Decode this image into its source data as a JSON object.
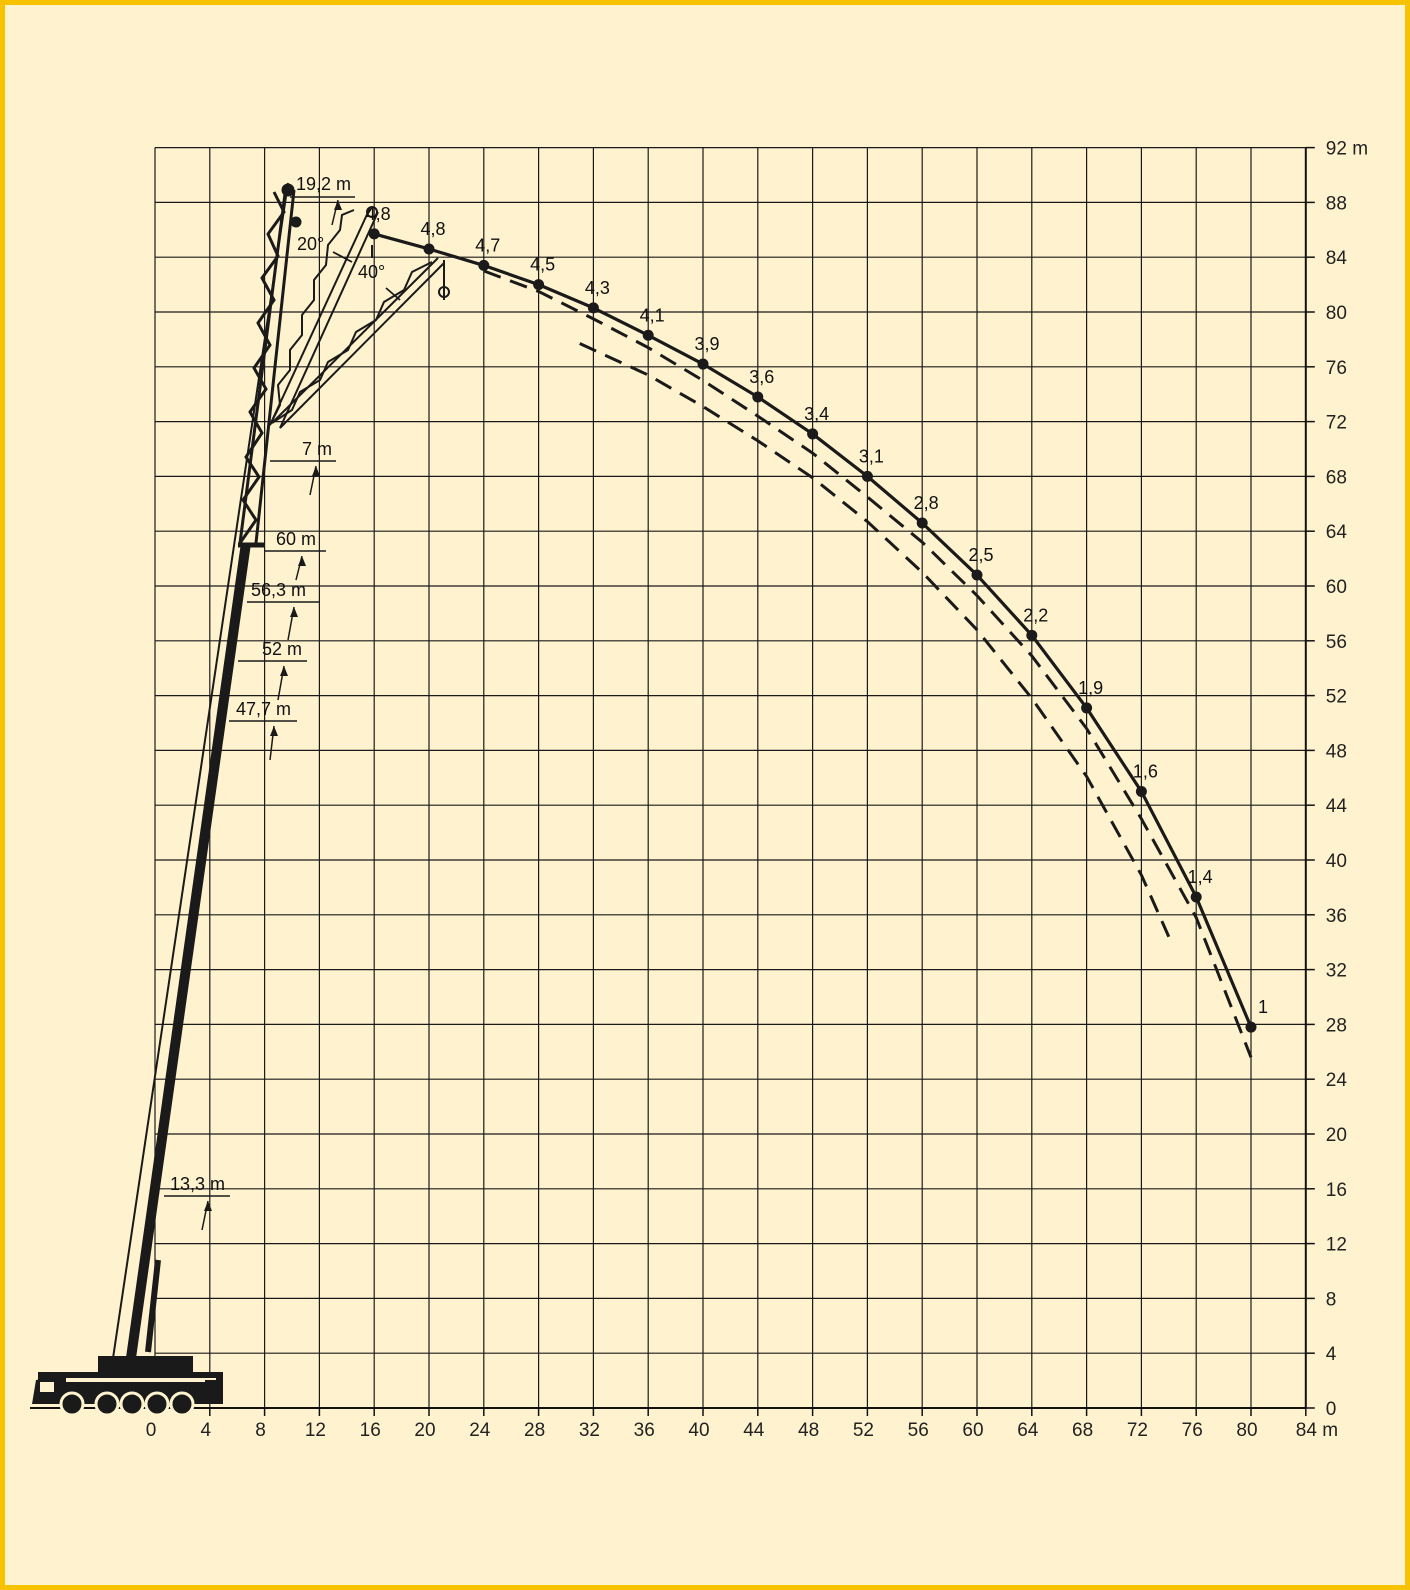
{
  "chart_data": {
    "type": "line",
    "title": "",
    "xlabel": "m",
    "ylabel": "m",
    "xlim": [
      0,
      84
    ],
    "ylim": [
      0,
      92
    ],
    "grid": true,
    "x_ticks": [
      "0",
      "4",
      "8",
      "12",
      "16",
      "20",
      "24",
      "28",
      "32",
      "36",
      "40",
      "44",
      "48",
      "52",
      "56",
      "60",
      "64",
      "68",
      "72",
      "76",
      "80",
      "84 m"
    ],
    "y_ticks": [
      "0",
      "4",
      "8",
      "12",
      "16",
      "20",
      "24",
      "28",
      "32",
      "36",
      "40",
      "44",
      "48",
      "52",
      "56",
      "60",
      "64",
      "68",
      "72",
      "76",
      "80",
      "84",
      "88",
      "92 m"
    ],
    "series": [
      {
        "style": "solid",
        "x": [
          16,
          20,
          24,
          28,
          32,
          36,
          40,
          44,
          48,
          52,
          56,
          60,
          64,
          68,
          72,
          76,
          80
        ],
        "y": [
          85.7,
          84.6,
          83.4,
          82.0,
          80.3,
          78.3,
          76.2,
          73.8,
          71.1,
          68.0,
          64.6,
          60.8,
          56.4,
          51.1,
          45.0,
          37.3,
          27.8
        ],
        "point_labels": [
          "4,8",
          "4,8",
          "4,7",
          "4,5",
          "4,3",
          "4,1",
          "3,9",
          "3,6",
          "3,4",
          "3,1",
          "2,8",
          "2,5",
          "2,2",
          "1,9",
          "1,6",
          "1,4",
          "1"
        ]
      },
      {
        "style": "dashed",
        "x": [
          24,
          28,
          32,
          36,
          40,
          44,
          48,
          52,
          56,
          60,
          64,
          68,
          72,
          76,
          80
        ],
        "y": [
          83.0,
          81.5,
          79.5,
          77.4,
          75.0,
          72.4,
          69.7,
          66.5,
          63.2,
          59.3,
          54.9,
          49.6,
          43.0,
          35.8,
          25.6
        ]
      },
      {
        "style": "dashed",
        "x": [
          31,
          36,
          40,
          44,
          48,
          52,
          56,
          60,
          64,
          68,
          72,
          74
        ],
        "y": [
          77.7,
          75.4,
          73.1,
          70.6,
          67.9,
          64.7,
          61.0,
          56.8,
          51.8,
          46.1,
          38.9,
          34.4
        ]
      }
    ],
    "boom_labels": [
      "19,2 m",
      "20°",
      "40°",
      "7 m",
      "60 m",
      "56,3 m",
      "52 m",
      "47,7 m",
      "13,3 m"
    ]
  }
}
